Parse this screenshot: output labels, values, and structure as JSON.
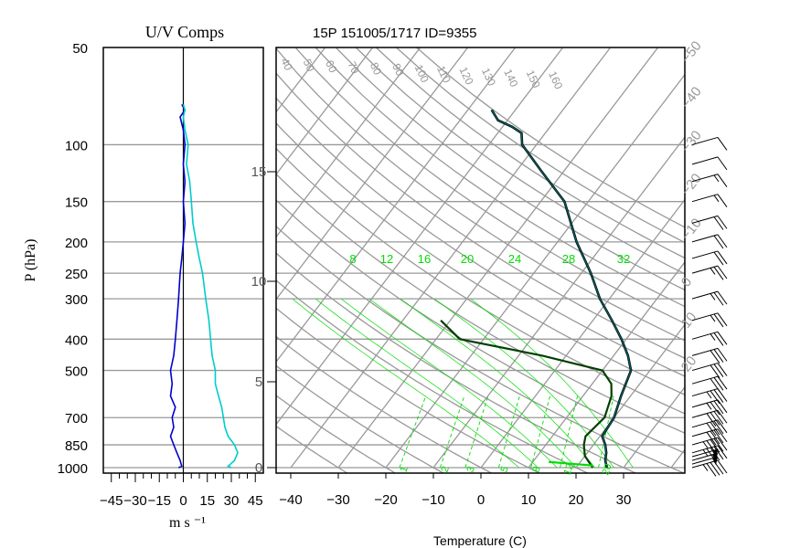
{
  "chart_data": [
    {
      "type": "line",
      "title": "U/V Comps",
      "ylabel": "P (hPa)",
      "xlabel": "m s ⁻¹",
      "x_ticks": [
        "−45",
        "−30",
        "−15",
        "0",
        "15",
        "30",
        "45"
      ],
      "y_ticks": [
        "50",
        "100",
        "150",
        "200",
        "250",
        "300",
        "400",
        "500",
        "700",
        "850",
        "1000"
      ],
      "xlim": [
        -50,
        50
      ],
      "ylim": [
        1000,
        50
      ],
      "y_scale": "log",
      "grid": true,
      "colors": {
        "u": "#0000cc",
        "v": "#00cccc",
        "grid": "#999999"
      },
      "series": [
        {
          "points": [
            [
              -3,
              1000
            ],
            [
              -1,
              990
            ],
            [
              -2,
              950
            ],
            [
              -4,
              900
            ],
            [
              -6,
              850
            ],
            [
              -8,
              800
            ],
            [
              -6,
              750
            ],
            [
              -7,
              700
            ],
            [
              -5,
              650
            ],
            [
              -8,
              600
            ],
            [
              -7,
              550
            ],
            [
              -8,
              500
            ],
            [
              -6,
              450
            ],
            [
              -5,
              400
            ],
            [
              -4,
              350
            ],
            [
              -3,
              300
            ],
            [
              -2,
              250
            ],
            [
              -1,
              225
            ],
            [
              0,
              200
            ],
            [
              1,
              175
            ],
            [
              0,
              150
            ],
            [
              1,
              130
            ],
            [
              0,
              115
            ],
            [
              1,
              100
            ],
            [
              0,
              90
            ],
            [
              -2,
              82
            ],
            [
              1,
              78
            ],
            [
              -1,
              75
            ]
          ]
        },
        {
          "points": [
            [
              30,
              1000
            ],
            [
              28,
              990
            ],
            [
              32,
              950
            ],
            [
              34,
              900
            ],
            [
              32,
              850
            ],
            [
              28,
              800
            ],
            [
              26,
              750
            ],
            [
              25,
              700
            ],
            [
              24,
              650
            ],
            [
              22,
              600
            ],
            [
              20,
              550
            ],
            [
              20,
              500
            ],
            [
              18,
              450
            ],
            [
              17,
              400
            ],
            [
              16,
              350
            ],
            [
              14,
              300
            ],
            [
              12,
              250
            ],
            [
              10,
              225
            ],
            [
              8,
              200
            ],
            [
              6,
              175
            ],
            [
              5,
              150
            ],
            [
              4,
              130
            ],
            [
              2,
              115
            ],
            [
              3,
              100
            ],
            [
              1,
              90
            ],
            [
              0,
              82
            ],
            [
              1,
              78
            ],
            [
              0,
              75
            ]
          ]
        }
      ]
    },
    {
      "type": "line",
      "title": "15P 151005/1717 ID=9355",
      "xlabel": "Temperature (C)",
      "x_ticks": [
        "−40",
        "−30",
        "−20",
        "−10",
        "0",
        "10",
        "20",
        "30"
      ],
      "xlim": [
        -43,
        40
      ],
      "ylim": [
        1000,
        50
      ],
      "y_scale": "log",
      "height_ticks": [
        "0",
        "5",
        "10",
        "15"
      ],
      "isotherm_labels": [
        "−50",
        "−40",
        "−30",
        "−20",
        "−10",
        "0",
        "10",
        "20"
      ],
      "dry_adiabat_labels": [
        "40",
        "50",
        "60",
        "70",
        "80",
        "90",
        "100",
        "110",
        "120",
        "130",
        "140",
        "150",
        "160"
      ],
      "moist_adiabat_labels": [
        "8",
        "12",
        "16",
        "20",
        "24",
        "28",
        "32"
      ],
      "mixing_ratio_labels": [
        "1",
        "2",
        "3",
        "5",
        "8",
        "12",
        "20"
      ],
      "colors": {
        "temperature": "#000000",
        "temperature_overlay": "#006060",
        "dewpoint": "#004000",
        "adiabat": "#00dd00",
        "grid": "#999999"
      },
      "series": [
        {
          "points": [
            [
              26.5,
              1000
            ],
            [
              25,
              950
            ],
            [
              24,
              900
            ],
            [
              22.5,
              850
            ],
            [
              20.5,
              800
            ],
            [
              20,
              700
            ],
            [
              18,
              600
            ],
            [
              16,
              500
            ],
            [
              13,
              450
            ],
            [
              9,
              400
            ],
            [
              4,
              350
            ],
            [
              -2,
              300
            ],
            [
              -8,
              250
            ],
            [
              -16,
              200
            ],
            [
              -25,
              150
            ],
            [
              -35,
              120
            ],
            [
              -43,
              100
            ],
            [
              -45,
              92
            ],
            [
              -48,
              88
            ],
            [
              -52,
              84
            ],
            [
              -55,
              78
            ]
          ]
        },
        {
          "points": [
            [
              23.5,
              1000
            ],
            [
              20,
              920
            ],
            [
              18,
              850
            ],
            [
              17,
              800
            ],
            [
              18,
              700
            ],
            [
              16,
              600
            ],
            [
              14,
              550
            ],
            [
              10,
              500
            ],
            [
              -5,
              450
            ],
            [
              -25,
              400
            ],
            [
              -32,
              350
            ]
          ]
        }
      ],
      "wind_barbs": [
        {
          "p": 1000,
          "kt": 45
        },
        {
          "p": 975,
          "kt": 50
        },
        {
          "p": 950,
          "kt": 50
        },
        {
          "p": 925,
          "kt": 50
        },
        {
          "p": 900,
          "kt": 45
        },
        {
          "p": 850,
          "kt": 45
        },
        {
          "p": 800,
          "kt": 40
        },
        {
          "p": 750,
          "kt": 40
        },
        {
          "p": 700,
          "kt": 40
        },
        {
          "p": 650,
          "kt": 35
        },
        {
          "p": 600,
          "kt": 35
        },
        {
          "p": 550,
          "kt": 30
        },
        {
          "p": 500,
          "kt": 30
        },
        {
          "p": 450,
          "kt": 30
        },
        {
          "p": 400,
          "kt": 25
        },
        {
          "p": 350,
          "kt": 25
        },
        {
          "p": 300,
          "kt": 25
        },
        {
          "p": 250,
          "kt": 25
        },
        {
          "p": 225,
          "kt": 20
        },
        {
          "p": 200,
          "kt": 20
        },
        {
          "p": 175,
          "kt": 20
        },
        {
          "p": 150,
          "kt": 15
        },
        {
          "p": 130,
          "kt": 15
        },
        {
          "p": 115,
          "kt": 10
        },
        {
          "p": 100,
          "kt": 10
        }
      ]
    }
  ]
}
